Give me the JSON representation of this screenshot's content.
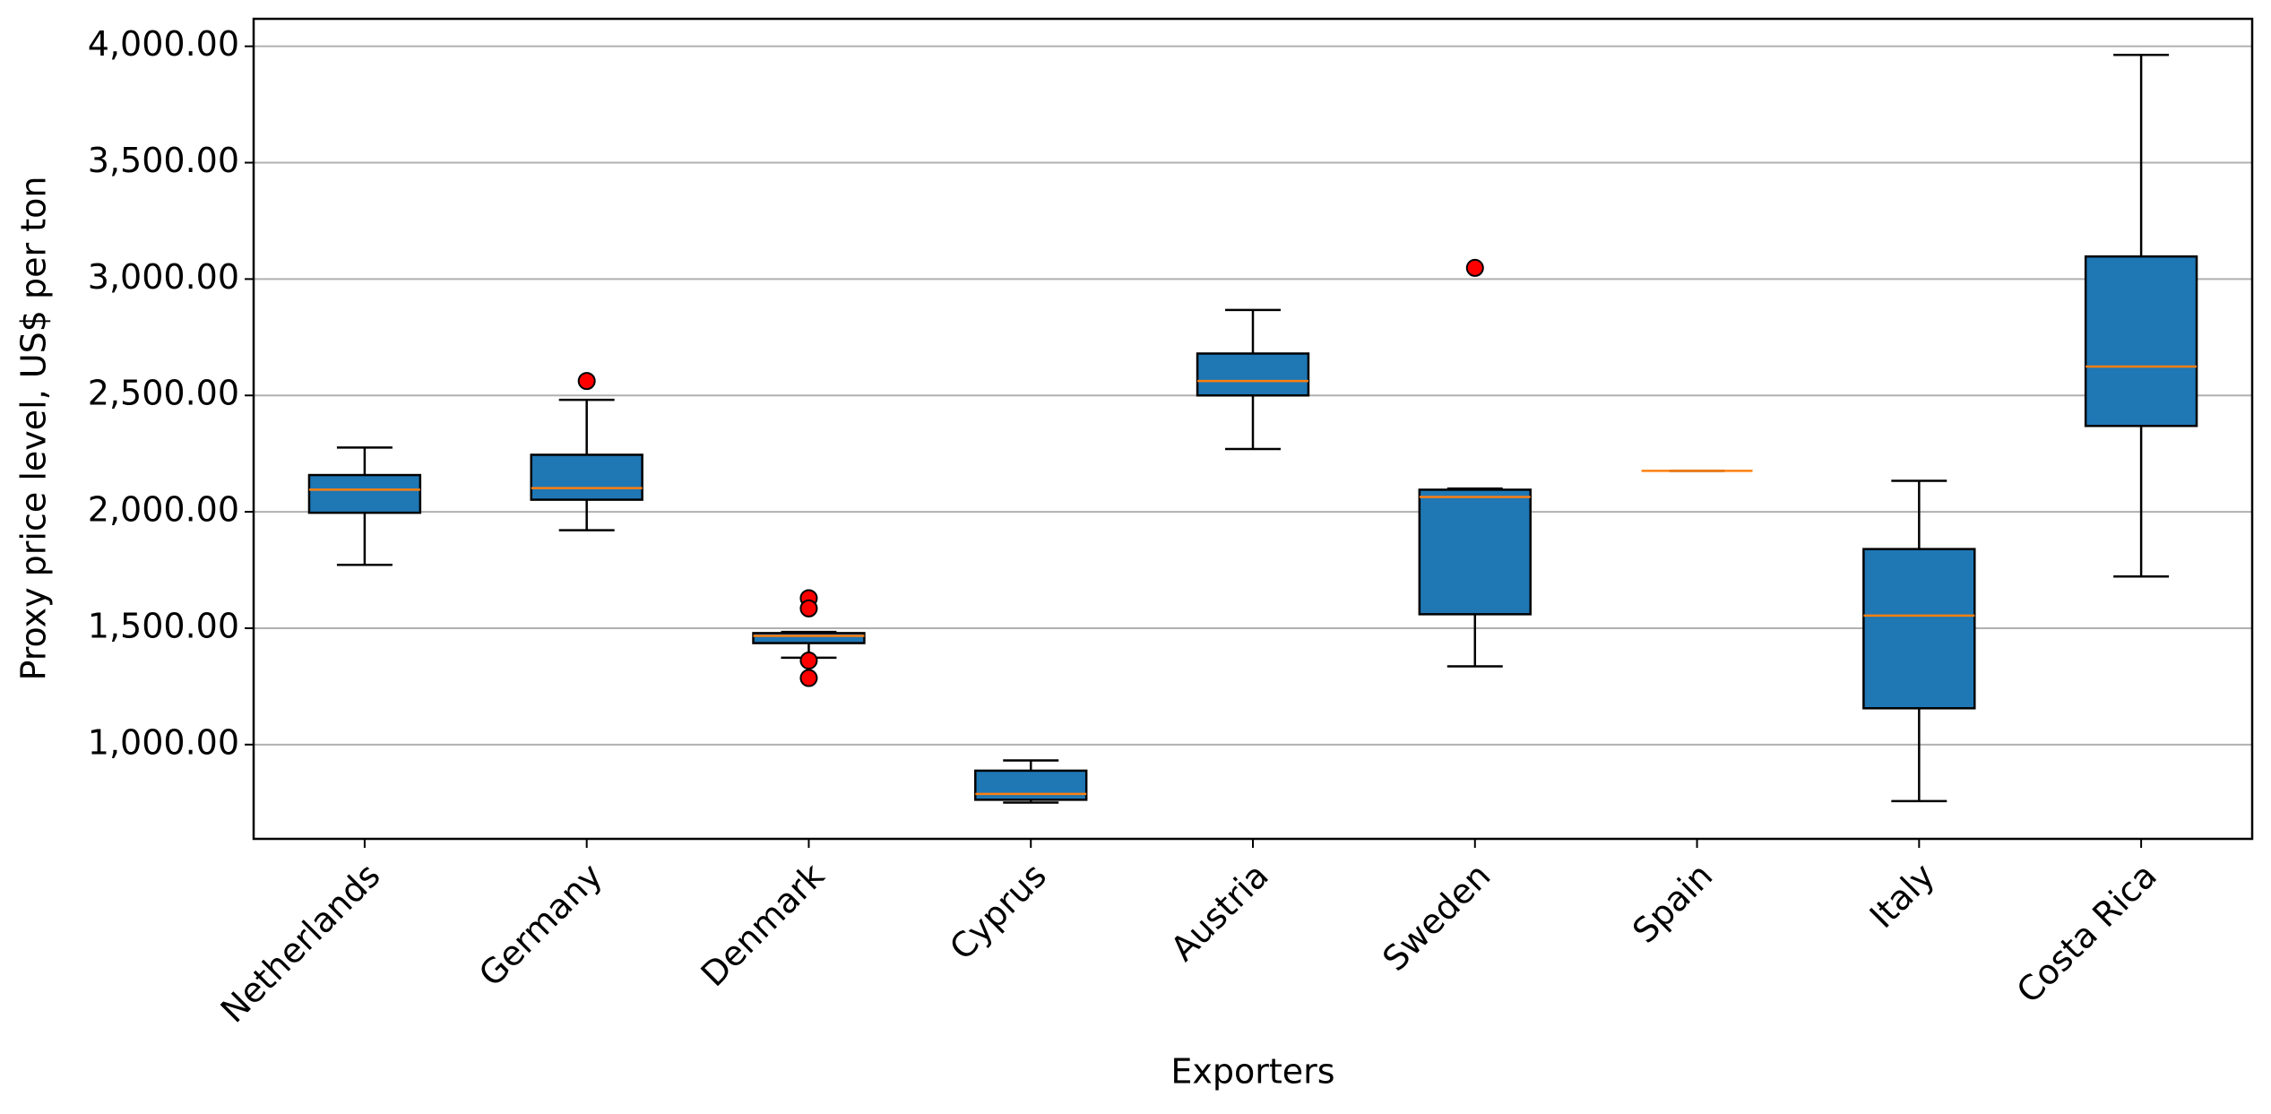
{
  "chart_data": {
    "type": "box",
    "x_label": "Exporters",
    "y_label": "Proxy price level, US$ per ton",
    "categories": [
      "Netherlands",
      "Germany",
      "Denmark",
      "Cyprus",
      "Austria",
      "Sweden",
      "Spain",
      "Italy",
      "Costa Rica"
    ],
    "boxes": [
      {
        "whislo": 1772,
        "q1": 1996,
        "med": 2095,
        "q3": 2158,
        "whishi": 2276,
        "fliers": []
      },
      {
        "whislo": 1921,
        "q1": 2052,
        "med": 2102,
        "q3": 2245,
        "whishi": 2481,
        "fliers": [
          2562
        ]
      },
      {
        "whislo": 1373,
        "q1": 1436,
        "med": 1467,
        "q3": 1479,
        "whishi": 1484,
        "fliers": [
          1629,
          1585,
          1361,
          1286
        ]
      },
      {
        "whislo": 751,
        "q1": 763,
        "med": 788,
        "q3": 888,
        "whishi": 932,
        "fliers": []
      },
      {
        "whislo": 2270,
        "q1": 2500,
        "med": 2562,
        "q3": 2680,
        "whishi": 2867,
        "fliers": []
      },
      {
        "whislo": 1336,
        "q1": 1560,
        "med": 2064,
        "q3": 2095,
        "whishi": 2100,
        "fliers": [
          3048
        ]
      },
      {
        "whislo": 2176,
        "q1": 2176,
        "med": 2176,
        "q3": 2176,
        "whishi": 2176,
        "fliers": []
      },
      {
        "whislo": 757,
        "q1": 1156,
        "med": 1554,
        "q3": 1840,
        "whishi": 2133,
        "fliers": []
      },
      {
        "whislo": 1722,
        "q1": 2369,
        "med": 2624,
        "q3": 3097,
        "whishi": 3963,
        "fliers": []
      }
    ],
    "color": "#1f77b4",
    "median_color": "#ff7f0e",
    "flier_color": "#ff0000",
    "ylim": [
      595,
      4118
    ],
    "yticks": [
      {
        "value": 1000,
        "label": "1,000.00"
      },
      {
        "value": 1500,
        "label": "1,500.00"
      },
      {
        "value": 2000,
        "label": "2,000.00"
      },
      {
        "value": 2500,
        "label": "2,500.00"
      },
      {
        "value": 3000,
        "label": "3,000.00"
      },
      {
        "value": 3500,
        "label": "3,500.00"
      },
      {
        "value": 4000,
        "label": "4,000.00"
      }
    ],
    "grid": true
  }
}
